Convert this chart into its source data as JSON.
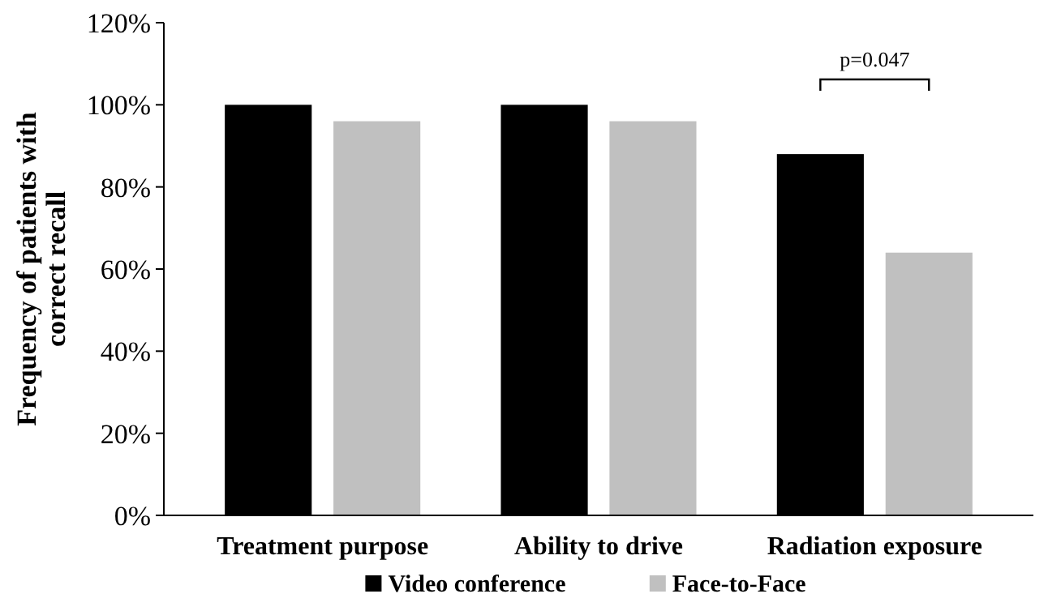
{
  "chart_data": {
    "type": "bar",
    "ylabel": "Frequency of patients with correct recall",
    "categories": [
      "Treatment purpose",
      "Ability to drive",
      "Radiation exposure"
    ],
    "series": [
      {
        "name": "Video conference",
        "color": "#000000",
        "values": [
          100,
          100,
          88
        ]
      },
      {
        "name": "Face-to-Face",
        "color": "#c0c0c0",
        "values": [
          96,
          96,
          64
        ]
      }
    ],
    "ylim": [
      0,
      120
    ],
    "yticks": [
      {
        "value": 0,
        "label": "0%"
      },
      {
        "value": 20,
        "label": "20%"
      },
      {
        "value": 40,
        "label": "40%"
      },
      {
        "value": 60,
        "label": "60%"
      },
      {
        "value": 80,
        "label": "80%"
      },
      {
        "value": 100,
        "label": "100%"
      },
      {
        "value": 120,
        "label": "120%"
      }
    ],
    "annotations": [
      "p=0.047"
    ],
    "legend": "bottom",
    "grid": false
  }
}
